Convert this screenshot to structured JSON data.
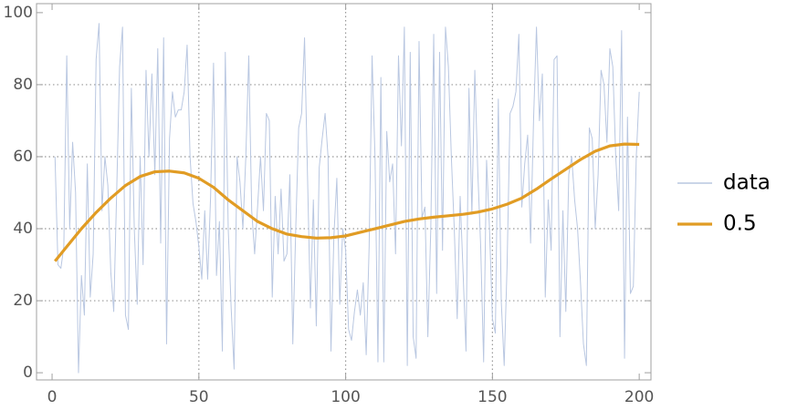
{
  "chart_data": {
    "type": "line",
    "series": [
      {
        "name": "data",
        "color": "#b9c7e1",
        "width": 1,
        "x": [
          1,
          2,
          3,
          4,
          5,
          6,
          7,
          8,
          9,
          10,
          11,
          12,
          13,
          14,
          15,
          16,
          17,
          18,
          19,
          20,
          21,
          22,
          23,
          24,
          25,
          26,
          27,
          28,
          29,
          30,
          31,
          32,
          33,
          34,
          35,
          36,
          37,
          38,
          39,
          40,
          41,
          42,
          43,
          44,
          45,
          46,
          47,
          48,
          49,
          50,
          51,
          52,
          53,
          54,
          55,
          56,
          57,
          58,
          59,
          60,
          61,
          62,
          63,
          64,
          65,
          66,
          67,
          68,
          69,
          70,
          71,
          72,
          73,
          74,
          75,
          76,
          77,
          78,
          79,
          80,
          81,
          82,
          83,
          84,
          85,
          86,
          87,
          88,
          89,
          90,
          91,
          92,
          93,
          94,
          95,
          96,
          97,
          98,
          99,
          100,
          101,
          102,
          103,
          104,
          105,
          106,
          107,
          108,
          109,
          110,
          111,
          112,
          113,
          114,
          115,
          116,
          117,
          118,
          119,
          120,
          121,
          122,
          123,
          124,
          125,
          126,
          127,
          128,
          129,
          130,
          131,
          132,
          133,
          134,
          135,
          136,
          137,
          138,
          139,
          140,
          141,
          142,
          143,
          144,
          145,
          146,
          147,
          148,
          149,
          150,
          151,
          152,
          153,
          154,
          155,
          156,
          157,
          158,
          159,
          160,
          161,
          162,
          163,
          164,
          165,
          166,
          167,
          168,
          169,
          170,
          171,
          172,
          173,
          174,
          175,
          176,
          177,
          178,
          179,
          180,
          181,
          182,
          183,
          184,
          185,
          186,
          187,
          188,
          189,
          190,
          191,
          192,
          193,
          194,
          195,
          196,
          197,
          198,
          199,
          200
        ],
        "values": [
          60,
          30,
          29,
          35,
          88,
          40,
          64,
          50,
          0,
          27,
          16,
          58,
          21,
          33,
          87,
          97,
          45,
          60,
          52,
          28,
          17,
          50,
          85,
          96,
          16,
          12,
          79,
          40,
          19,
          60,
          30,
          84,
          60,
          83,
          55,
          90,
          36,
          93,
          8,
          65,
          78,
          71,
          73,
          73,
          78,
          91,
          60,
          47,
          42,
          35,
          26,
          45,
          26,
          49,
          86,
          27,
          42,
          6,
          89,
          40,
          18,
          1,
          60,
          53,
          40,
          60,
          88,
          45,
          33,
          46,
          60,
          45,
          72,
          70,
          21,
          49,
          33,
          51,
          31,
          33,
          55,
          8,
          40,
          68,
          72,
          93,
          55,
          18,
          48,
          13,
          57,
          65,
          72,
          60,
          6,
          38,
          54,
          19,
          40,
          34,
          12,
          9,
          17,
          23,
          16,
          25,
          5,
          35,
          88,
          60,
          3,
          82,
          3,
          67,
          53,
          58,
          33,
          88,
          63,
          96,
          2,
          89,
          10,
          4,
          92,
          43,
          46,
          10,
          40,
          94,
          22,
          89,
          34,
          96,
          85,
          60,
          40,
          15,
          49,
          28,
          6,
          79,
          44,
          84,
          56,
          35,
          3,
          59,
          40,
          15,
          11,
          76,
          20,
          2,
          30,
          72,
          74,
          78,
          94,
          46,
          58,
          66,
          36,
          70,
          96,
          70,
          83,
          21,
          48,
          34,
          87,
          88,
          10,
          45,
          17,
          55,
          60,
          48,
          40,
          25,
          8,
          2,
          68,
          65,
          40,
          55,
          84,
          80,
          64,
          90,
          85,
          60,
          45,
          95,
          4,
          71,
          22,
          24,
          60,
          78
        ]
      },
      {
        "name": "0.5",
        "color": "#e19c24",
        "width": 3.2,
        "x": [
          1,
          5,
          10,
          15,
          20,
          25,
          30,
          35,
          40,
          45,
          50,
          55,
          60,
          65,
          70,
          75,
          80,
          85,
          90,
          95,
          100,
          105,
          110,
          115,
          120,
          125,
          130,
          135,
          140,
          145,
          150,
          155,
          160,
          165,
          170,
          175,
          180,
          185,
          190,
          195,
          200
        ],
        "values": [
          31,
          35,
          40,
          44.5,
          48.5,
          52,
          54.5,
          55.8,
          56,
          55.5,
          54,
          51.5,
          48,
          45,
          42,
          40,
          38.5,
          37.8,
          37.4,
          37.5,
          38,
          39,
          40,
          41,
          42,
          42.7,
          43.2,
          43.6,
          44,
          44.6,
          45.5,
          46.8,
          48.5,
          51,
          53.8,
          56.5,
          59.2,
          61.5,
          63,
          63.5,
          63.4
        ]
      }
    ],
    "xlim": [
      -5.3,
      204
    ],
    "ylim": [
      -2,
      102.5
    ],
    "xticks": [
      0,
      50,
      100,
      150,
      200
    ],
    "yticks": [
      0,
      20,
      40,
      60,
      80,
      100
    ],
    "xgrid": [
      50,
      100,
      150
    ],
    "ygrid": [
      20,
      40,
      60,
      80
    ]
  }
}
